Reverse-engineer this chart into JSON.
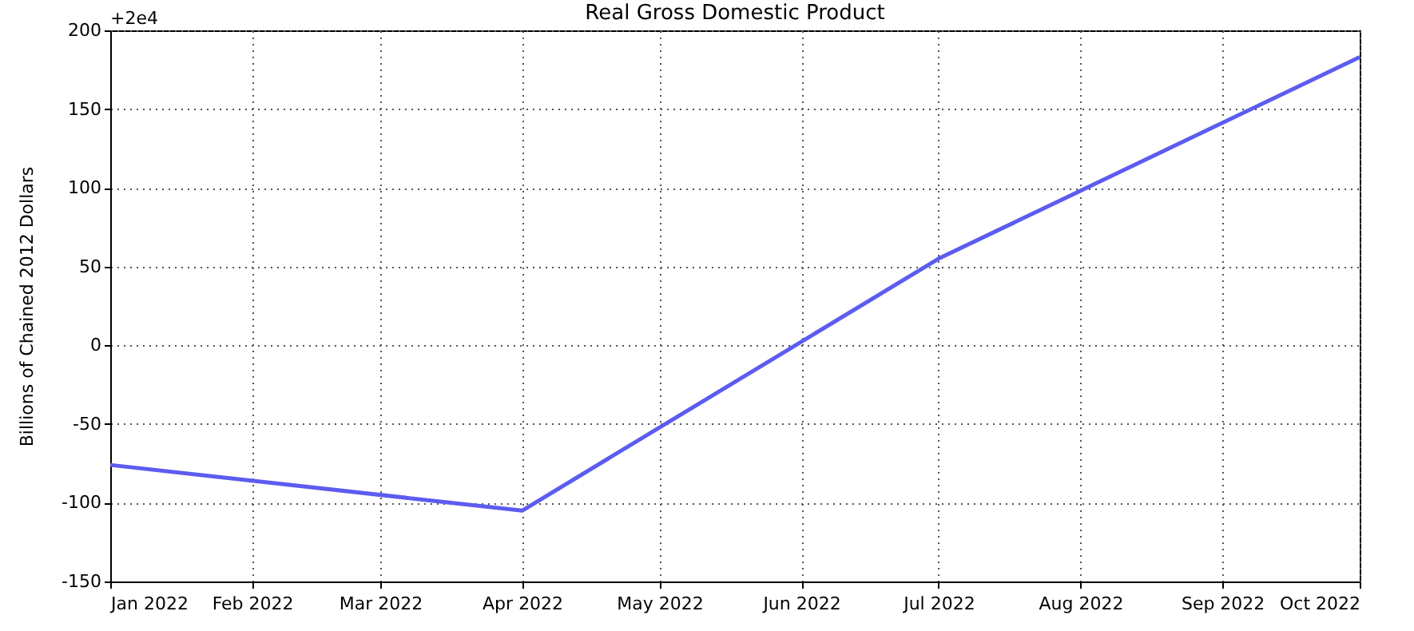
{
  "chart_data": {
    "type": "line",
    "title": "Real Gross Domestic Product",
    "ylabel": "Billions of Chained 2012 Dollars",
    "annotations": [
      "+2e4"
    ],
    "x": [
      "2022-01",
      "2022-04",
      "2022-07",
      "2022-10"
    ],
    "series": [
      {
        "color": "#5c5cf0",
        "values": [
          -76,
          -105,
          55,
          183
        ]
      }
    ],
    "xlim": [
      "2022-01",
      "2022-10"
    ],
    "xticks": [
      {
        "value": "2022-01",
        "label": "Jan 2022"
      },
      {
        "value": "2022-02",
        "label": "Feb 2022"
      },
      {
        "value": "2022-03",
        "label": "Mar 2022"
      },
      {
        "value": "2022-04",
        "label": "Apr 2022"
      },
      {
        "value": "2022-05",
        "label": "May 2022"
      },
      {
        "value": "2022-06",
        "label": "Jun 2022"
      },
      {
        "value": "2022-07",
        "label": "Jul 2022"
      },
      {
        "value": "2022-08",
        "label": "Aug 2022"
      },
      {
        "value": "2022-09",
        "label": "Sep 2022"
      },
      {
        "value": "2022-10",
        "label": "Oct 2022"
      }
    ],
    "ylim": [
      -150,
      200
    ],
    "yticks": [
      -150,
      -100,
      -50,
      0,
      50,
      100,
      150,
      200
    ],
    "grid": true,
    "line_style": "solid",
    "marker": "none"
  }
}
